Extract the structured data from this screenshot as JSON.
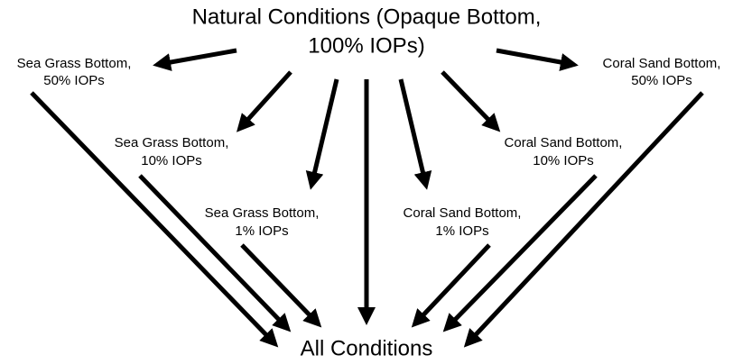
{
  "nodes": [
    {
      "lines": [
        "Natural Conditions (Opaque Bottom,",
        "100% IOPs)"
      ]
    },
    {
      "lines": [
        "Sea Grass Bottom,",
        "50% IOPs"
      ]
    },
    {
      "lines": [
        "Sea Grass Bottom,",
        "10% IOPs"
      ]
    },
    {
      "lines": [
        "Sea Grass Bottom,",
        "1% IOPs"
      ]
    },
    {
      "lines": [
        "Coral Sand Bottom,",
        "1% IOPs"
      ]
    },
    {
      "lines": [
        "Coral Sand Bottom,",
        "10% IOPs"
      ]
    },
    {
      "lines": [
        "Coral Sand Bottom,",
        "50% IOPs"
      ]
    },
    {
      "lines": [
        "All Conditions"
      ]
    }
  ]
}
